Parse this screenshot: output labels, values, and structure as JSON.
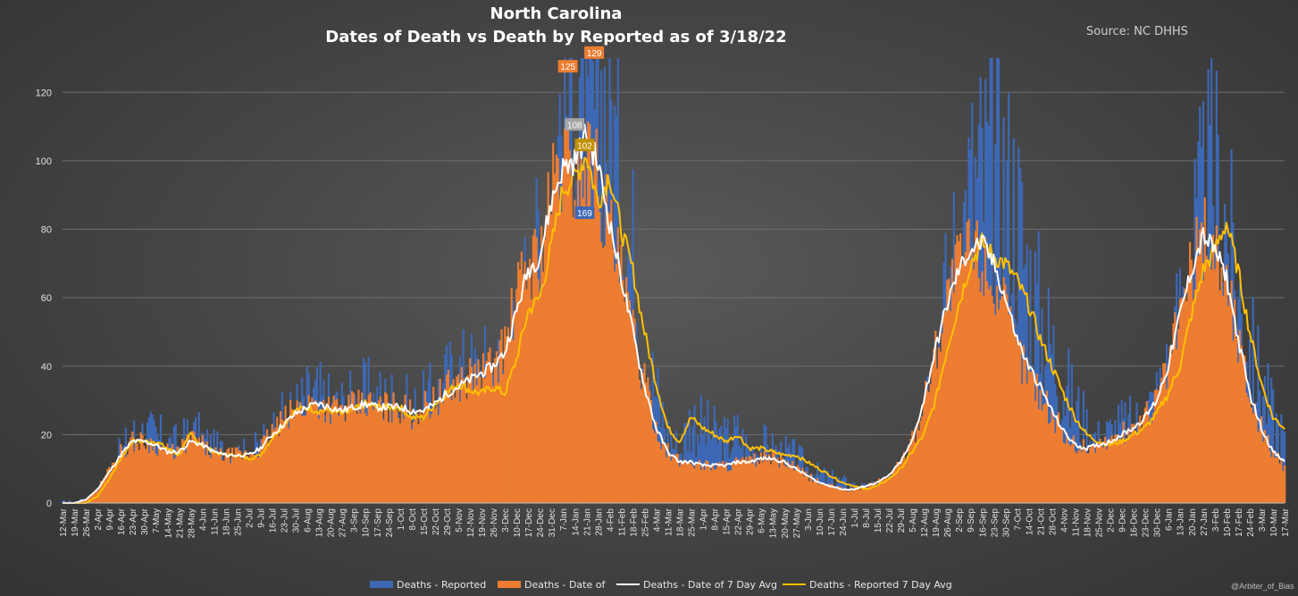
{
  "header": {
    "title": "North Carolina",
    "subtitle": "Dates of Death vs Death by Reported as of 3/18/22",
    "source": "Source: NC DHHS",
    "watermark": "@Arbiter_of_Bias"
  },
  "colors": {
    "reported": "#3d68b5",
    "date_of": "#ed7d31",
    "date_avg": "#ffffff",
    "reported_avg": "#ffc000",
    "label_gray": "#a5a5a5",
    "label_gold": "#bf9000"
  },
  "chart_data": {
    "type": "bar",
    "title": "Dates of Death vs Death by Reported as of 3/18/22",
    "ylim": [
      0,
      130
    ],
    "yticks": [
      0,
      20,
      40,
      60,
      80,
      100,
      120
    ],
    "grid": true,
    "legend_position": "bottom",
    "x_start": "2020-03-12",
    "x_tick_labels": [
      "12-Mar",
      "19-Mar",
      "26-Mar",
      "2-Apr",
      "9-Apr",
      "16-Apr",
      "23-Apr",
      "30-Apr",
      "7-May",
      "14-May",
      "21-May",
      "28-May",
      "4-Jun",
      "11-Jun",
      "18-Jun",
      "25-Jun",
      "2-Jul",
      "9-Jul",
      "16-Jul",
      "23-Jul",
      "30-Jul",
      "6-Aug",
      "13-Aug",
      "20-Aug",
      "27-Aug",
      "3-Sep",
      "10-Sep",
      "17-Sep",
      "24-Sep",
      "1-Oct",
      "8-Oct",
      "15-Oct",
      "22-Oct",
      "29-Oct",
      "5-Nov",
      "12-Nov",
      "19-Nov",
      "26-Nov",
      "3-Dec",
      "10-Dec",
      "17-Dec",
      "24-Dec",
      "31-Dec",
      "7-Jan",
      "14-Jan",
      "21-Jan",
      "28-Jan",
      "4-Feb",
      "11-Feb",
      "18-Feb",
      "25-Feb",
      "4-Mar",
      "11-Mar",
      "18-Mar",
      "25-Mar",
      "1-Apr",
      "8-Apr",
      "15-Apr",
      "22-Apr",
      "29-Apr",
      "6-May",
      "13-May",
      "20-May",
      "27-May",
      "3-Jun",
      "10-Jun",
      "17-Jun",
      "24-Jun",
      "1-Jul",
      "8-Jul",
      "15-Jul",
      "22-Jul",
      "29-Jul",
      "5-Aug",
      "12-Aug",
      "19-Aug",
      "26-Aug",
      "2-Sep",
      "9-Sep",
      "16-Sep",
      "23-Sep",
      "30-Sep",
      "7-Oct",
      "14-Oct",
      "21-Oct",
      "28-Oct",
      "4-Nov",
      "11-Nov",
      "18-Nov",
      "25-Nov",
      "2-Dec",
      "9-Dec",
      "16-Dec",
      "23-Dec",
      "30-Dec",
      "6-Jan",
      "13-Jan",
      "20-Jan",
      "27-Jan",
      "3-Feb",
      "10-Feb",
      "17-Feb",
      "24-Feb",
      "3-Mar",
      "10-Mar",
      "17-Mar"
    ],
    "series": [
      {
        "name": "Deaths - Reported",
        "type": "bar",
        "weekly_values": [
          0,
          0,
          1,
          3,
          8,
          14,
          19,
          20,
          19,
          17,
          16,
          20,
          18,
          15,
          14,
          14,
          13,
          16,
          20,
          23,
          26,
          29,
          30,
          27,
          27,
          28,
          30,
          29,
          29,
          28,
          25,
          27,
          30,
          34,
          37,
          37,
          38,
          37,
          40,
          46,
          65,
          70,
          85,
          118,
          125,
          95,
          120,
          118,
          85,
          72,
          45,
          32,
          20,
          15,
          25,
          22,
          20,
          18,
          20,
          15,
          17,
          15,
          14,
          13,
          10,
          8,
          7,
          6,
          5,
          4,
          5,
          6,
          9,
          15,
          28,
          45,
          60,
          75,
          90,
          95,
          98,
          92,
          85,
          65,
          55,
          45,
          35,
          28,
          22,
          18,
          20,
          22,
          22,
          25,
          30,
          38,
          55,
          70,
          85,
          95,
          80,
          60,
          45,
          35,
          25,
          18,
          10
        ]
      },
      {
        "name": "Deaths - Date of",
        "type": "bar",
        "weekly_values": [
          0,
          0,
          1,
          4,
          10,
          15,
          18,
          18,
          17,
          15,
          15,
          19,
          17,
          14,
          14,
          14,
          14,
          16,
          21,
          24,
          27,
          29,
          29,
          28,
          27,
          28,
          29,
          28,
          28,
          28,
          26,
          28,
          30,
          33,
          35,
          37,
          38,
          40,
          46,
          60,
          70,
          72,
          90,
          100,
          95,
          100,
          95,
          80,
          65,
          50,
          35,
          22,
          15,
          12,
          12,
          11,
          11,
          11,
          12,
          12,
          13,
          13,
          12,
          10,
          8,
          6,
          5,
          4,
          4,
          5,
          6,
          8,
          12,
          18,
          30,
          45,
          60,
          70,
          75,
          72,
          65,
          55,
          45,
          38,
          32,
          26,
          20,
          17,
          16,
          17,
          18,
          20,
          22,
          25,
          30,
          40,
          55,
          68,
          78,
          75,
          65,
          48,
          32,
          22,
          15,
          10,
          6
        ]
      },
      {
        "name": "Deaths - Date of 7 Day Avg",
        "type": "line",
        "weekly_values": [
          0,
          0,
          1,
          4,
          9,
          14,
          18,
          18,
          17,
          15,
          15,
          18,
          17,
          15,
          14,
          14,
          14,
          16,
          20,
          23,
          26,
          28,
          29,
          28,
          27,
          28,
          29,
          28,
          28,
          28,
          27,
          27,
          29,
          32,
          34,
          36,
          38,
          40,
          44,
          56,
          68,
          72,
          88,
          98,
          100,
          108,
          99,
          82,
          66,
          50,
          34,
          22,
          15,
          12,
          12,
          11,
          11,
          11,
          12,
          12,
          13,
          13,
          12,
          10,
          8,
          6,
          5,
          4,
          4,
          5,
          6,
          8,
          12,
          18,
          30,
          45,
          58,
          68,
          74,
          76,
          70,
          60,
          48,
          40,
          34,
          27,
          21,
          17,
          16,
          17,
          18,
          20,
          22,
          25,
          30,
          40,
          55,
          68,
          78,
          74,
          66,
          48,
          32,
          22,
          15,
          12,
          11
        ]
      },
      {
        "name": "Deaths - Reported 7 Day Avg",
        "type": "line",
        "weekly_values": [
          0,
          0,
          0,
          2,
          7,
          13,
          18,
          18,
          18,
          16,
          14,
          20,
          17,
          15,
          14,
          14,
          13,
          14,
          19,
          23,
          27,
          28,
          27,
          27,
          26,
          27,
          29,
          28,
          28,
          28,
          25,
          25,
          29,
          32,
          35,
          33,
          32,
          34,
          32,
          42,
          56,
          60,
          75,
          92,
          95,
          102,
          88,
          96,
          80,
          68,
          50,
          35,
          22,
          18,
          25,
          22,
          20,
          18,
          20,
          16,
          16,
          15,
          14,
          14,
          12,
          10,
          8,
          6,
          5,
          4,
          5,
          7,
          10,
          15,
          20,
          30,
          45,
          58,
          70,
          76,
          72,
          70,
          65,
          58,
          48,
          40,
          32,
          25,
          20,
          18,
          17,
          18,
          20,
          22,
          26,
          32,
          40,
          55,
          68,
          74,
          82,
          68,
          50,
          35,
          25,
          22,
          20
        ]
      }
    ],
    "data_labels": [
      {
        "series": "Deaths - Date of",
        "date": "2021-01-11",
        "value": 125,
        "text": "125"
      },
      {
        "series": "Deaths - Date of",
        "date": "2021-01-15",
        "value": 129,
        "text": "129"
      },
      {
        "series": "Deaths - Date of 7 Day Avg",
        "date": "2021-01-14",
        "value": 108,
        "text": "108"
      },
      {
        "series": "Deaths - Reported 7 Day Avg",
        "date": "2021-01-20",
        "value": 102,
        "text": "102"
      },
      {
        "series": "Deaths - Reported",
        "date": "2021-01-20",
        "value": 169,
        "text": "169"
      }
    ]
  },
  "legend": {
    "items": [
      {
        "label": "Deaths - Reported"
      },
      {
        "label": "Deaths - Date of"
      },
      {
        "label": "Deaths - Date of 7 Day Avg"
      },
      {
        "label": "Deaths - Reported 7 Day Avg"
      }
    ]
  }
}
